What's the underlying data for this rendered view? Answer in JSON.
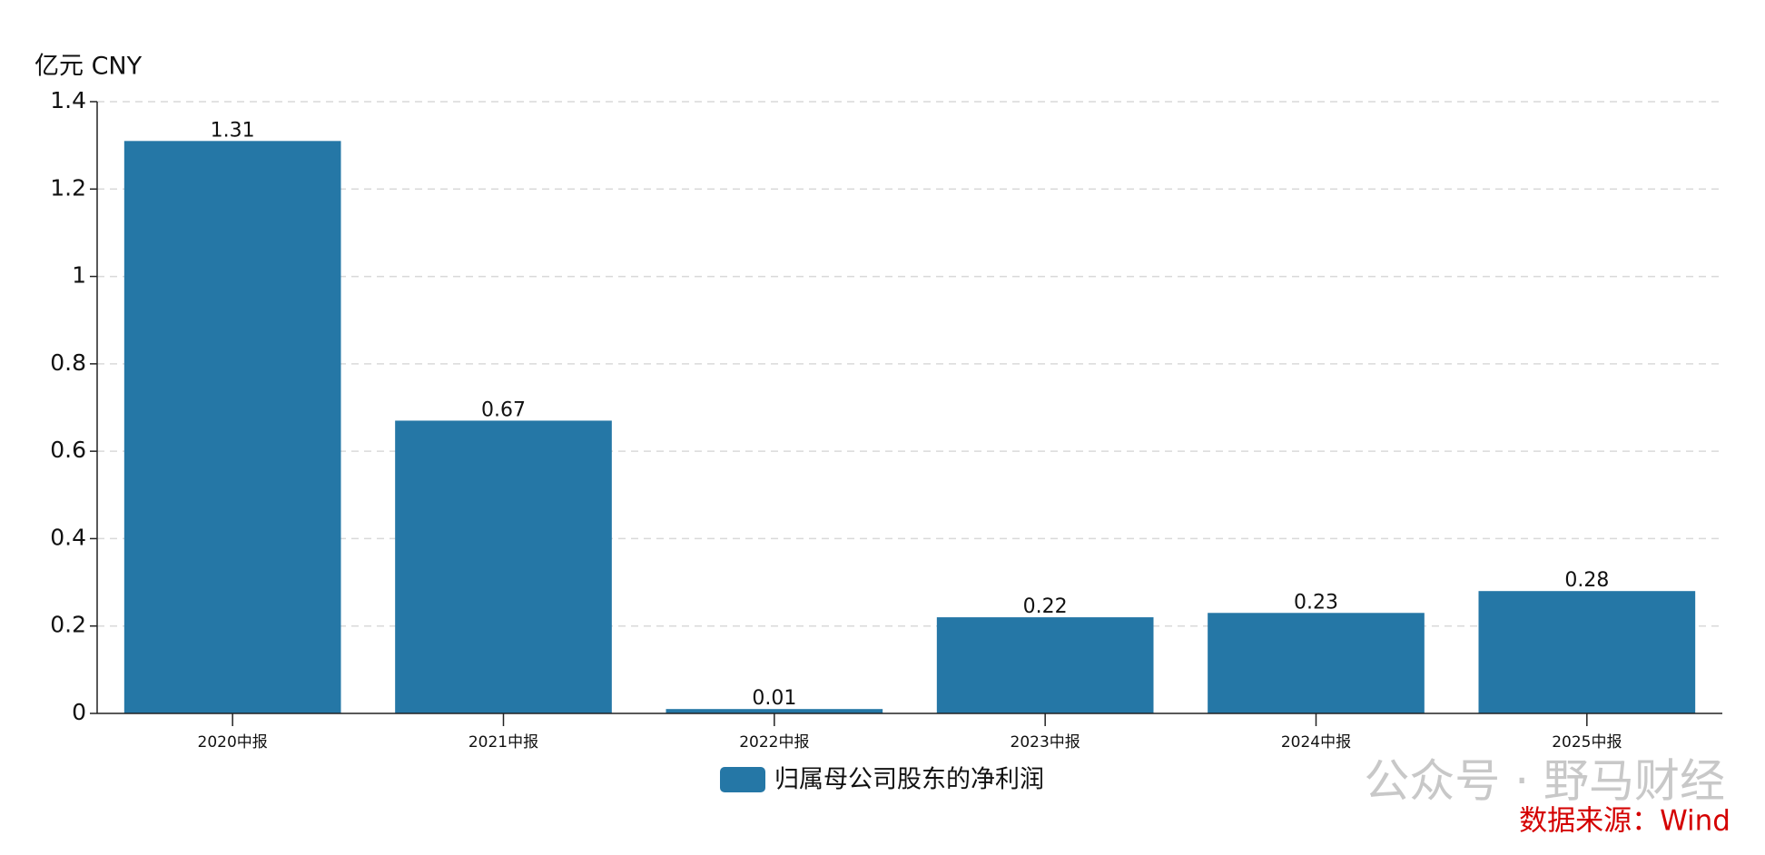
{
  "chart_data": {
    "type": "bar",
    "y_unit": "亿元  CNY",
    "categories": [
      "2020中报",
      "2021中报",
      "2022中报",
      "2023中报",
      "2024中报",
      "2025中报"
    ],
    "series": [
      {
        "name": "归属母公司股东的净利润",
        "color": "#2577a6",
        "values": [
          1.31,
          0.67,
          0.01,
          0.22,
          0.23,
          0.28
        ]
      }
    ],
    "ylim": [
      0,
      1.4
    ],
    "yticks": [
      0,
      0.2,
      0.4,
      0.6,
      0.8,
      1,
      1.2,
      1.4
    ],
    "grid": true,
    "watermark": "公众号 · 野马财经",
    "source": "数据来源：Wind"
  }
}
